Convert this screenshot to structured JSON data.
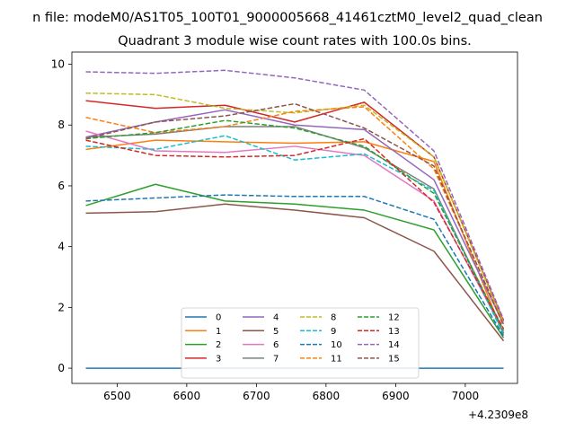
{
  "chart_data": {
    "type": "line",
    "suptitle": "n file: modeM0/AS1T05_100T01_9000005668_41461cztM0_level2_quad_clean",
    "title": "Quadrant 3 module wise count rates with 100.0s bins.",
    "xlabel": "",
    "ylabel": "",
    "x_offset_label": "+4.2309e8",
    "x": [
      6455,
      6555,
      6655,
      6755,
      6855,
      6955,
      7055
    ],
    "xlim": [
      6435,
      7075
    ],
    "ylim": [
      -0.5,
      10.4
    ],
    "xticks": [
      6500,
      6600,
      6700,
      6800,
      6900,
      7000
    ],
    "yticks": [
      0,
      2,
      4,
      6,
      8,
      10
    ],
    "grid": false,
    "legend": {
      "position": "lower center",
      "columns": 4
    },
    "series": [
      {
        "name": "0",
        "color": "#1f77b4",
        "dash": "solid",
        "values": [
          0,
          0,
          0,
          0,
          0,
          0,
          0
        ]
      },
      {
        "name": "1",
        "color": "#ff7f0e",
        "dash": "solid",
        "values": [
          7.2,
          7.5,
          7.45,
          7.4,
          7.45,
          6.8,
          1.1
        ]
      },
      {
        "name": "2",
        "color": "#2ca02c",
        "dash": "solid",
        "values": [
          5.35,
          6.05,
          5.5,
          5.4,
          5.2,
          4.55,
          1.0
        ]
      },
      {
        "name": "3",
        "color": "#d62728",
        "dash": "solid",
        "values": [
          8.8,
          8.55,
          8.65,
          8.1,
          8.75,
          6.95,
          1.55
        ]
      },
      {
        "name": "4",
        "color": "#9467bd",
        "dash": "solid",
        "values": [
          7.6,
          8.1,
          8.5,
          8.0,
          7.85,
          6.2,
          1.45
        ]
      },
      {
        "name": "5",
        "color": "#8c564b",
        "dash": "solid",
        "values": [
          5.1,
          5.15,
          5.4,
          5.2,
          4.95,
          3.85,
          0.9
        ]
      },
      {
        "name": "6",
        "color": "#e377c2",
        "dash": "solid",
        "values": [
          7.8,
          7.15,
          7.1,
          7.3,
          7.0,
          5.5,
          1.2
        ]
      },
      {
        "name": "7",
        "color": "#7f7f7f",
        "dash": "solid",
        "values": [
          7.6,
          7.7,
          7.95,
          7.95,
          7.25,
          5.9,
          1.15
        ]
      },
      {
        "name": "8",
        "color": "#bcbd22",
        "dash": "dashed",
        "values": [
          9.05,
          9.0,
          8.55,
          8.4,
          8.65,
          6.95,
          1.5
        ]
      },
      {
        "name": "9",
        "color": "#17becf",
        "dash": "dashed",
        "values": [
          7.3,
          7.2,
          7.65,
          6.85,
          7.05,
          5.85,
          1.1
        ]
      },
      {
        "name": "10",
        "color": "#1f77b4",
        "dash": "dashed",
        "values": [
          5.5,
          5.6,
          5.7,
          5.65,
          5.65,
          4.9,
          1.05
        ]
      },
      {
        "name": "11",
        "color": "#ff7f0e",
        "dash": "dashed",
        "values": [
          8.25,
          7.75,
          7.95,
          8.45,
          8.6,
          6.55,
          1.45
        ]
      },
      {
        "name": "12",
        "color": "#2ca02c",
        "dash": "dashed",
        "values": [
          7.55,
          7.75,
          8.15,
          7.9,
          7.3,
          5.75,
          1.25
        ]
      },
      {
        "name": "13",
        "color": "#d62728",
        "dash": "dashed",
        "values": [
          7.5,
          7.0,
          6.95,
          7.0,
          7.55,
          5.45,
          1.3
        ]
      },
      {
        "name": "14",
        "color": "#9467bd",
        "dash": "dashed",
        "values": [
          9.75,
          9.7,
          9.8,
          9.55,
          9.15,
          7.15,
          1.6
        ]
      },
      {
        "name": "15",
        "color": "#8c564b",
        "dash": "dashed",
        "values": [
          7.55,
          8.1,
          8.3,
          8.7,
          7.9,
          6.65,
          1.4
        ]
      }
    ]
  }
}
